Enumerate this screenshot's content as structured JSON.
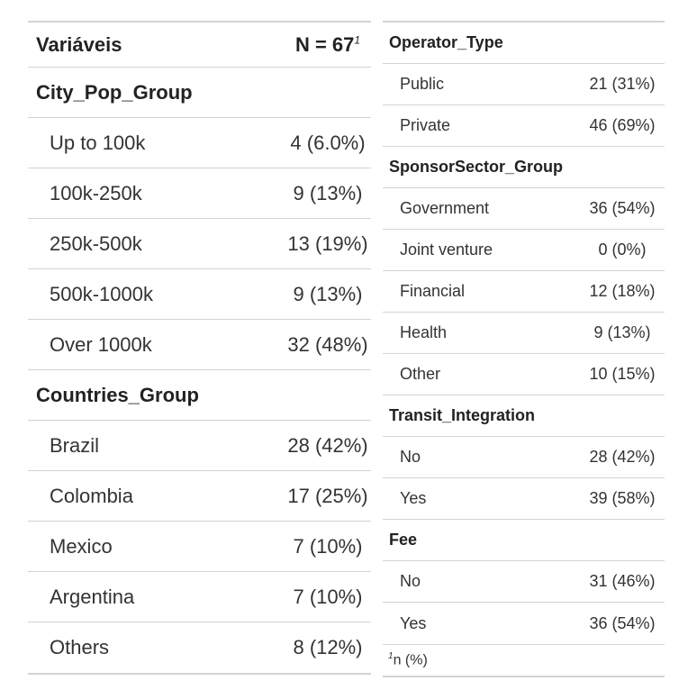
{
  "left_table": {
    "header": {
      "variable_label": "Variáveis",
      "n_label": "N = 67",
      "n_footnote_mark": "1"
    },
    "groups": [
      {
        "title": "City_Pop_Group",
        "rows": [
          {
            "label": "Up to 100k",
            "value": "4 (6.0%)"
          },
          {
            "label": "100k-250k",
            "value": "9 (13%)"
          },
          {
            "label": "250k-500k",
            "value": "13 (19%)"
          },
          {
            "label": "500k-1000k",
            "value": "9 (13%)"
          },
          {
            "label": "Over 1000k",
            "value": "32 (48%)"
          }
        ]
      },
      {
        "title": "Countries_Group",
        "rows": [
          {
            "label": "Brazil",
            "value": "28 (42%)"
          },
          {
            "label": "Colombia",
            "value": "17 (25%)"
          },
          {
            "label": "Mexico",
            "value": "7 (10%)"
          },
          {
            "label": "Argentina",
            "value": "7 (10%)"
          },
          {
            "label": "Others",
            "value": "8 (12%)"
          }
        ]
      }
    ]
  },
  "right_table": {
    "groups": [
      {
        "title": "Operator_Type",
        "rows": [
          {
            "label": "Public",
            "value": "21 (31%)"
          },
          {
            "label": "Private",
            "value": "46 (69%)"
          }
        ]
      },
      {
        "title": "SponsorSector_Group",
        "rows": [
          {
            "label": "Government",
            "value": "36 (54%)"
          },
          {
            "label": "Joint venture",
            "value": "0 (0%)"
          },
          {
            "label": "Financial",
            "value": "12 (18%)"
          },
          {
            "label": "Health",
            "value": "9 (13%)"
          },
          {
            "label": "Other",
            "value": "10 (15%)"
          }
        ]
      },
      {
        "title": "Transit_Integration",
        "rows": [
          {
            "label": "No",
            "value": "28 (42%)"
          },
          {
            "label": "Yes",
            "value": "39 (58%)"
          }
        ]
      },
      {
        "title": "Fee",
        "rows": [
          {
            "label": "No",
            "value": "31 (46%)"
          },
          {
            "label": "Yes",
            "value": "36 (54%)"
          }
        ]
      }
    ],
    "footnote": {
      "mark": "1",
      "text": "n (%)"
    }
  }
}
